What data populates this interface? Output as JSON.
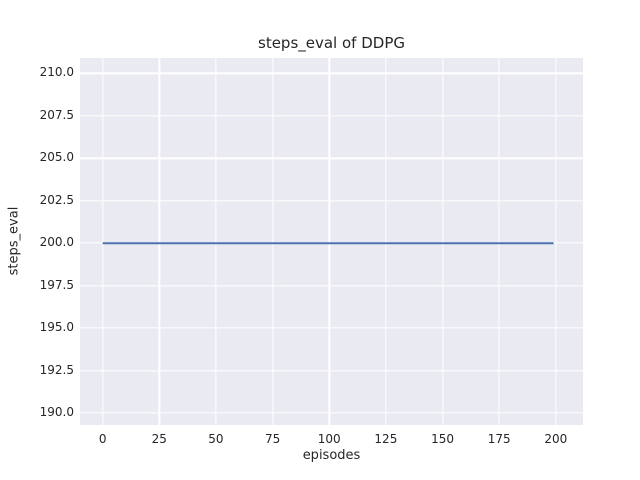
{
  "chart_data": {
    "type": "line",
    "title": "steps_eval of DDPG",
    "xlabel": "episodes",
    "ylabel": "steps_eval",
    "xlim": [
      -10,
      212
    ],
    "ylim": [
      189.3,
      210.9
    ],
    "x_ticks": [
      0,
      25,
      50,
      75,
      100,
      125,
      150,
      175,
      200
    ],
    "x_tick_labels": [
      "0",
      "25",
      "50",
      "75",
      "100",
      "125",
      "150",
      "175",
      "200"
    ],
    "y_ticks": [
      190.0,
      192.5,
      195.0,
      197.5,
      200.0,
      202.5,
      205.0,
      207.5,
      210.0
    ],
    "y_tick_labels": [
      "190.0",
      "192.5",
      "195.0",
      "197.5",
      "200.0",
      "202.5",
      "205.0",
      "207.5",
      "210.0"
    ],
    "grid": true,
    "legend_position": "none",
    "series": [
      {
        "name": "DDPG",
        "x": [
          0,
          199
        ],
        "y": [
          200.0,
          200.0
        ],
        "color": "#4c72b0",
        "line_width": 2
      }
    ],
    "colors": {
      "plot_background": "#eaeaf2",
      "figure_background": "#ffffff",
      "grid_color": "#ffffff",
      "text_color": "#262626"
    }
  }
}
